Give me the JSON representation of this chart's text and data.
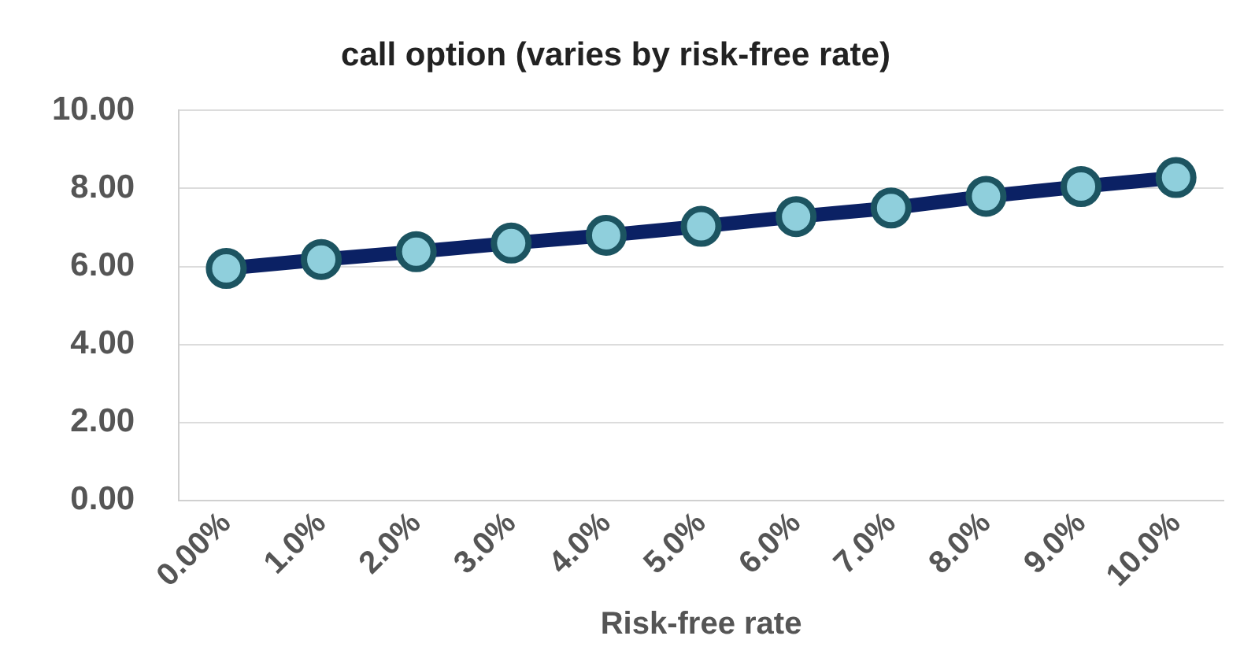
{
  "chart_data": {
    "type": "line",
    "title": "call option (varies by risk-free rate)",
    "xlabel": "Risk-free rate",
    "categories": [
      "0.00%",
      "1.0%",
      "2.0%",
      "3.0%",
      "4.0%",
      "5.0%",
      "6.0%",
      "7.0%",
      "8.0%",
      "9.0%",
      "10.0%"
    ],
    "series": [
      {
        "color": "#0b2164",
        "values": [
          5.95,
          6.18,
          6.38,
          6.6,
          6.8,
          7.03,
          7.28,
          7.5,
          7.8,
          8.05,
          8.28
        ]
      }
    ],
    "ylim": [
      0,
      10
    ],
    "yticks": [
      {
        "value": 0,
        "label": "0.00"
      },
      {
        "value": 2,
        "label": "2.00"
      },
      {
        "value": 4,
        "label": "4.00"
      },
      {
        "value": 6,
        "label": "6.00"
      },
      {
        "value": 8,
        "label": "8.00"
      },
      {
        "value": 10,
        "label": "10.00"
      }
    ],
    "grid": "y",
    "legend": false,
    "marker": "circle",
    "line_style": "solid"
  }
}
